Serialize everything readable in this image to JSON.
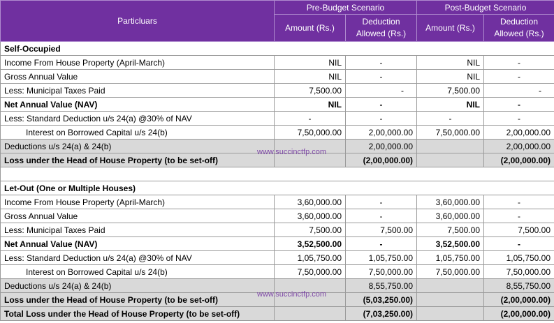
{
  "header": {
    "particulars": "Particluars",
    "pre_budget": "Pre-Budget Scenario",
    "post_budget": "Post-Budget Scenario",
    "amount": "Amount (Rs.)",
    "deduction": "Deduction Allowed (Rs.)"
  },
  "watermark": "www.succinctfp.com",
  "self_occupied": {
    "title": "Self-Occupied",
    "rows": [
      {
        "label": "Income From House Property (April-March)",
        "pre_amt": "NIL",
        "pre_ded": "-",
        "post_amt": "NIL",
        "post_ded": "-"
      },
      {
        "label": "Gross Annual Value",
        "pre_amt": "NIL",
        "pre_ded": "-",
        "post_amt": "NIL",
        "post_ded": "-"
      },
      {
        "label": "Less: Municipal Taxes Paid",
        "pre_amt": "7,500.00",
        "pre_ded": "-",
        "post_amt": "7,500.00",
        "post_ded": "-"
      },
      {
        "label": "Net Annual Value (NAV)",
        "pre_amt": "NIL",
        "pre_ded": "-",
        "post_amt": "NIL",
        "post_ded": "-"
      },
      {
        "label": "Less:  Standard Deduction u/s 24(a) @30% of NAV",
        "pre_amt": "-",
        "pre_ded": "-",
        "post_amt": "-",
        "post_ded": "-"
      },
      {
        "label": "Interest on Borrowed Capital u/s 24(b)",
        "pre_amt": "7,50,000.00",
        "pre_ded": "2,00,000.00",
        "post_amt": "7,50,000.00",
        "post_ded": "2,00,000.00"
      }
    ],
    "deductions": {
      "label": "Deductions u/s 24(a) & 24(b)",
      "pre_ded": "2,00,000.00",
      "post_ded": "2,00,000.00"
    },
    "loss": {
      "label": "Loss under the Head of House Property (to be set-off)",
      "pre_ded": "(2,00,000.00)",
      "post_ded": "(2,00,000.00)"
    }
  },
  "let_out": {
    "title": "Let-Out (One or Multiple Houses)",
    "rows": [
      {
        "label": "Income From House Property (April-March)",
        "pre_amt": "3,60,000.00",
        "pre_ded": "-",
        "post_amt": "3,60,000.00",
        "post_ded": "-"
      },
      {
        "label": "Gross Annual Value",
        "pre_amt": "3,60,000.00",
        "pre_ded": "-",
        "post_amt": "3,60,000.00",
        "post_ded": "-"
      },
      {
        "label": "Less: Municipal Taxes Paid",
        "pre_amt": "7,500.00",
        "pre_ded": "7,500.00",
        "post_amt": "7,500.00",
        "post_ded": "7,500.00"
      },
      {
        "label": "Net Annual Value (NAV)",
        "pre_amt": "3,52,500.00",
        "pre_ded": "-",
        "post_amt": "3,52,500.00",
        "post_ded": "-"
      },
      {
        "label": "Less:  Standard Deduction u/s 24(a) @30% of NAV",
        "pre_amt": "1,05,750.00",
        "pre_ded": "1,05,750.00",
        "post_amt": "1,05,750.00",
        "post_ded": "1,05,750.00"
      },
      {
        "label": "Interest on Borrowed Capital u/s 24(b)",
        "pre_amt": "7,50,000.00",
        "pre_ded": "7,50,000.00",
        "post_amt": "7,50,000.00",
        "post_ded": "7,50,000.00"
      }
    ],
    "deductions": {
      "label": "Deductions u/s 24(a) & 24(b)",
      "pre_ded": "8,55,750.00",
      "post_ded": "8,55,750.00"
    },
    "loss": {
      "label": "Loss under the Head of House Property (to be set-off)",
      "pre_ded": "(5,03,250.00)",
      "post_ded": "(2,00,000.00)"
    },
    "total_loss": {
      "label": "Total Loss under the Head of House Property (to be set-off)",
      "pre_ded": "(7,03,250.00)",
      "post_ded": "(2,00,000.00)"
    }
  }
}
